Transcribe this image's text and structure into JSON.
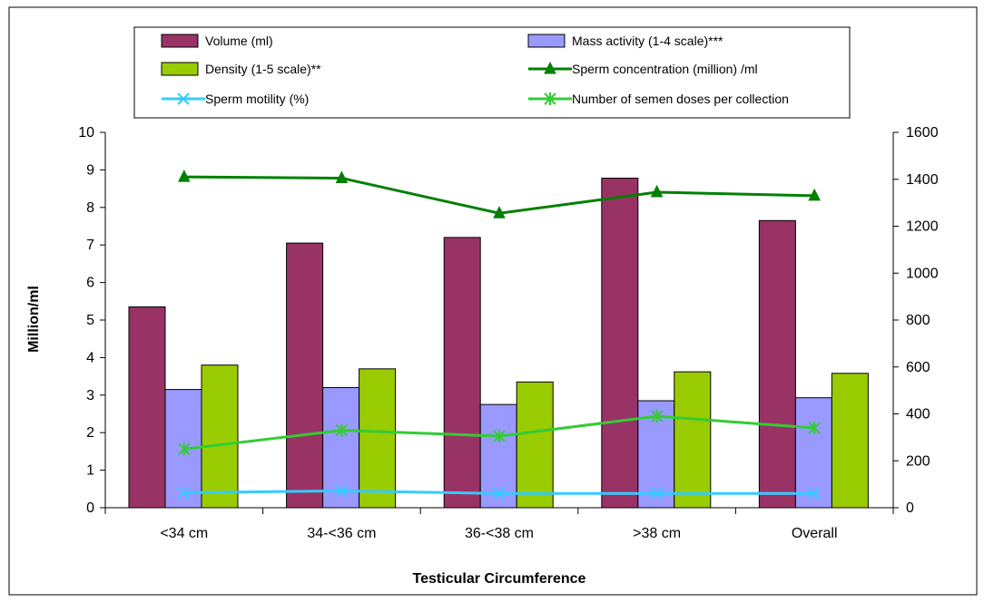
{
  "chart_data": {
    "type": "bar",
    "xlabel": "Testicular Circumference",
    "ylabel": "Million/ml",
    "y_left": {
      "min": 0,
      "max": 10,
      "step": 1
    },
    "y_right": {
      "min": 0,
      "max": 1600,
      "step": 200
    },
    "categories": [
      "<34 cm",
      "34-<36 cm",
      "36-<38 cm",
      ">38 cm",
      "Overall"
    ],
    "legend_placement": "top",
    "grid": false,
    "series": [
      {
        "name": "Volume (ml)",
        "type": "bar",
        "axis": "left",
        "color": "#993366",
        "values": [
          5.35,
          7.05,
          7.2,
          8.78,
          7.65
        ]
      },
      {
        "name": "Mass activity  (1-4 scale)***",
        "type": "bar",
        "axis": "left",
        "color": "#9999ff",
        "values": [
          3.15,
          3.2,
          2.75,
          2.85,
          2.93
        ]
      },
      {
        "name": "Density (1-5 scale)**",
        "type": "bar",
        "axis": "left",
        "color": "#99cc00",
        "values": [
          3.8,
          3.7,
          3.35,
          3.62,
          3.58
        ]
      },
      {
        "name": "Sperm concentration (million) /ml",
        "type": "line",
        "axis": "right",
        "marker": "triangle",
        "color": "#008000",
        "values": [
          1410,
          1405,
          1255,
          1345,
          1330
        ]
      },
      {
        "name": "Sperm motility (%)",
        "type": "line",
        "axis": "left",
        "marker": "x",
        "color": "#33ccff",
        "values": [
          0.4,
          0.45,
          0.38,
          0.38,
          0.38
        ]
      },
      {
        "name": "Number of semen doses per collection",
        "type": "line",
        "axis": "right",
        "marker": "asterisk",
        "color": "#33cc33",
        "values": [
          250,
          330,
          305,
          390,
          340
        ]
      }
    ]
  }
}
